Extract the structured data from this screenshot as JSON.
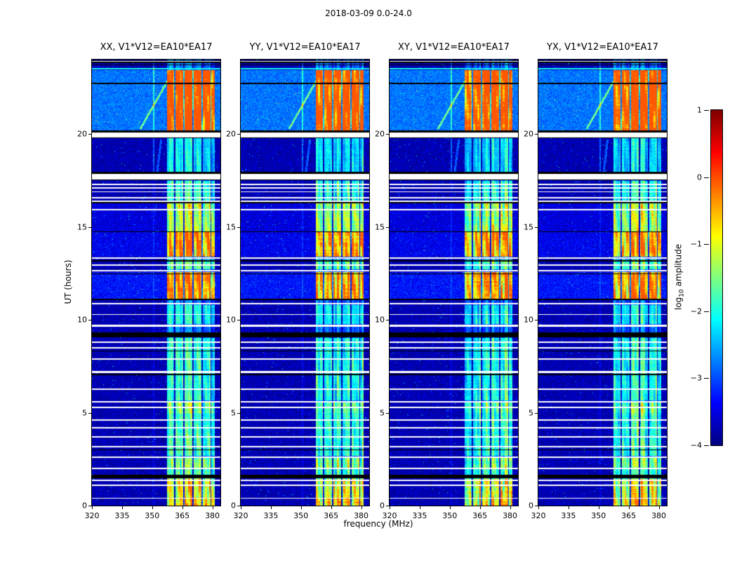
{
  "chart_data": {
    "type": "heatmap",
    "title": "2018-03-09 0.0-24.0",
    "xlabel": "frequency (MHz)",
    "ylabel": "UT (hours)",
    "x_range_mhz": [
      320,
      384
    ],
    "y_range_hours": [
      0,
      24
    ],
    "x_ticks": [
      320,
      335,
      350,
      365,
      380
    ],
    "y_ticks": [
      0,
      5,
      10,
      15,
      20
    ],
    "colormap": "jet",
    "panels": [
      {
        "label": "XX",
        "title": "XX, V1*V12=EA10*EA17",
        "seed": 11
      },
      {
        "label": "YY",
        "title": "YY, V1*V12=EA10*EA17",
        "seed": 23
      },
      {
        "label": "XY",
        "title": "XY, V1*V12=EA10*EA17",
        "seed": 37
      },
      {
        "label": "YX",
        "title": "YX, V1*V12=EA10*EA17",
        "seed": 51
      }
    ],
    "colorbar": {
      "label_prefix": "log",
      "label_sub": "10",
      "label_suffix": " amplitude",
      "tick_values": [
        1,
        0,
        -1,
        -2,
        -3,
        -4
      ],
      "value_min": -4,
      "value_max": 1
    },
    "background_log10": -3.75,
    "bright_background_intervals": [
      [
        20.18,
        23.42,
        -2.8
      ],
      [
        13.38,
        14.7,
        -3.45
      ],
      [
        11.15,
        12.58,
        -3.3
      ],
      [
        14.72,
        16.3,
        -3.55
      ]
    ],
    "rfi_band": {
      "f_start": 357.3,
      "f_end": 381.3,
      "separators_mhz": [
        361.3,
        365.8,
        370.3,
        374.8,
        379.3
      ]
    },
    "active_intervals": [
      [
        20.18,
        23.42,
        1.0
      ],
      [
        17.9,
        19.76,
        0.27
      ],
      [
        16.3,
        17.48,
        0.4
      ],
      [
        14.72,
        16.3,
        0.6
      ],
      [
        13.38,
        14.7,
        0.95
      ],
      [
        12.7,
        13.26,
        0.5
      ],
      [
        11.15,
        12.58,
        0.9
      ],
      [
        9.78,
        10.8,
        0.33
      ],
      [
        5.66,
        9.0,
        0.38
      ],
      [
        5.0,
        5.64,
        0.55
      ],
      [
        2.68,
        4.98,
        0.42
      ],
      [
        2.05,
        2.66,
        0.6
      ],
      [
        1.44,
        1.95,
        0.45
      ],
      [
        0.45,
        1.43,
        0.82
      ],
      [
        0.0,
        0.44,
        0.92
      ]
    ],
    "time_gaps": [
      [
        23.83,
        23.96
      ],
      [
        19.78,
        20.12
      ],
      [
        17.5,
        17.88
      ],
      [
        17.25,
        17.32
      ],
      [
        17.05,
        17.12
      ],
      [
        16.85,
        16.92
      ],
      [
        16.52,
        16.62
      ],
      [
        16.35,
        16.43
      ],
      [
        15.9,
        15.97
      ],
      [
        13.28,
        13.36
      ],
      [
        12.9,
        12.98
      ],
      [
        12.6,
        12.67
      ],
      [
        10.82,
        10.92
      ],
      [
        10.25,
        10.32
      ],
      [
        9.62,
        9.72
      ],
      [
        8.76,
        8.84
      ],
      [
        8.46,
        8.54
      ],
      [
        7.85,
        7.93
      ],
      [
        7.15,
        7.23
      ],
      [
        6.22,
        6.3
      ],
      [
        5.55,
        5.63
      ],
      [
        5.26,
        5.33
      ],
      [
        4.56,
        4.64
      ],
      [
        4.16,
        4.24
      ],
      [
        3.66,
        3.74
      ],
      [
        3.12,
        3.2
      ],
      [
        2.56,
        2.64
      ],
      [
        1.96,
        2.04
      ],
      [
        1.32,
        1.4
      ],
      [
        1.06,
        1.13
      ],
      [
        0.36,
        0.43
      ]
    ],
    "black_rows": [
      23.72,
      22.72,
      20.15,
      17.92,
      16.3,
      14.74,
      13.18,
      12.47,
      11.1,
      8.32,
      7.05,
      3.0
    ],
    "black_bands": [
      [
        9.05,
        9.32
      ],
      [
        1.48,
        1.65
      ]
    ],
    "cyan_rows": [
      23.5
    ],
    "vlines": [
      {
        "f_mhz": 350.7,
        "boost_strong": 0.85,
        "boost_weak": 0.3,
        "t_strong_min": 17.9
      }
    ],
    "streaks": [
      {
        "t0": 20.25,
        "t1": 23.4,
        "f_t0": 344,
        "f_t1": 360.5,
        "boost": 1.2
      },
      {
        "t0": 17.95,
        "t1": 19.7,
        "f_t0": 352.5,
        "f_t1": 354.5,
        "boost": 0.8
      }
    ]
  }
}
